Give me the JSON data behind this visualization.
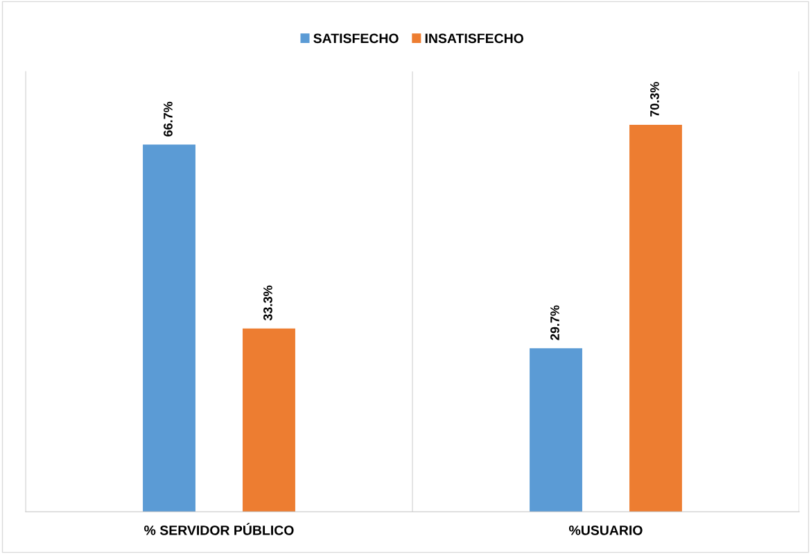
{
  "chart_data": {
    "type": "bar",
    "categories": [
      "% SERVIDOR PÚBLICO",
      "%USUARIO"
    ],
    "series": [
      {
        "name": "SATISFECHO",
        "color": "#5b9bd5",
        "values": [
          66.7,
          29.7
        ],
        "value_labels": [
          "66.7%",
          "29.7%"
        ]
      },
      {
        "name": "INSATISFECHO",
        "color": "#ed7d31",
        "values": [
          33.3,
          70.3
        ],
        "value_labels": [
          "33.3%",
          "70.3%"
        ]
      }
    ],
    "ylim": [
      0,
      80
    ],
    "grid": "x",
    "legend": "top",
    "tick_labels": "x"
  }
}
